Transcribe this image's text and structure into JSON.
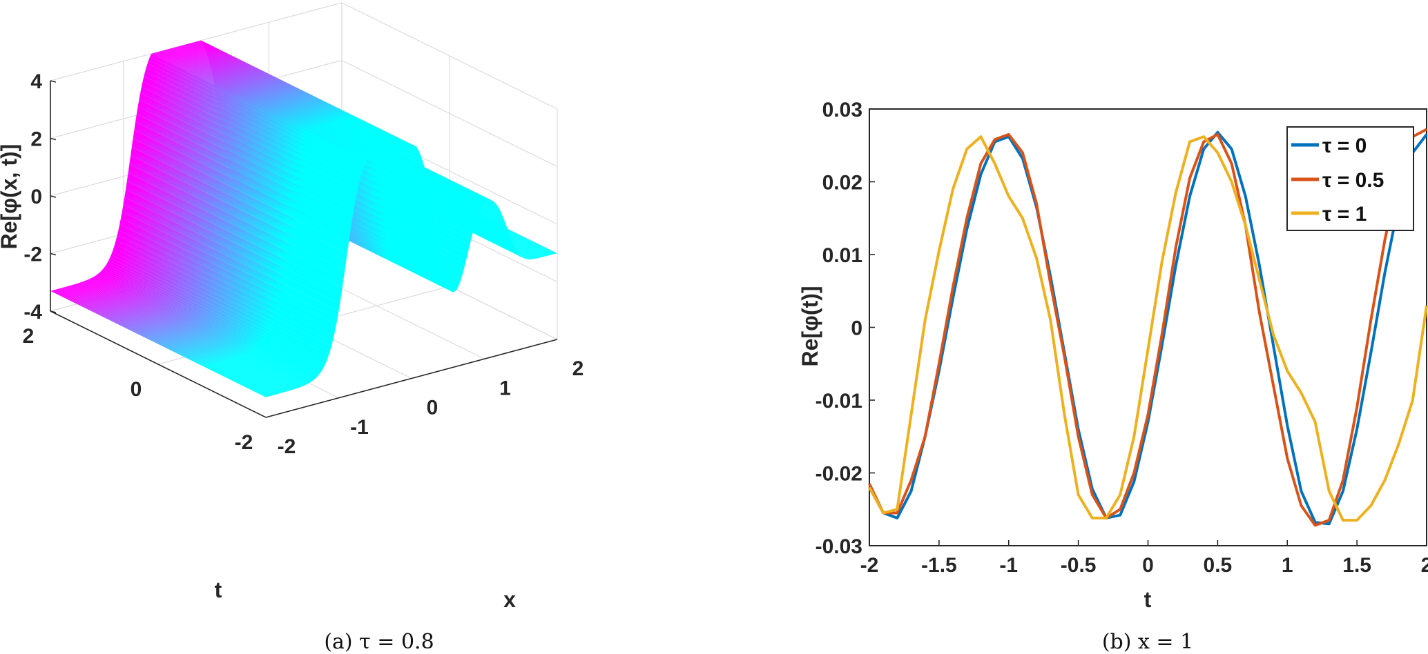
{
  "chart_data": [
    {
      "type": "surface",
      "caption": "(a) τ = 0.8",
      "zlabel": "Re[φ(x, t)]",
      "xlabel": "x",
      "ylabel": "t",
      "xlim": [
        -2,
        2
      ],
      "ylim": [
        -2,
        2
      ],
      "zlim": [
        -4,
        4
      ],
      "x_ticks": [
        "-2",
        "-1",
        "0",
        "1",
        "2"
      ],
      "y_ticks": [
        "-2",
        "0",
        "2"
      ],
      "z_ticks": [
        "-4",
        "-2",
        "0",
        "2",
        "4"
      ],
      "colormap": [
        "#00ffff",
        "#ff00ff"
      ],
      "grid": true
    },
    {
      "type": "line",
      "caption": "(b) x = 1",
      "xlabel": "t",
      "ylabel": "Re[φ(t)]",
      "xlim": [
        -2,
        2
      ],
      "ylim": [
        -0.03,
        0.03
      ],
      "x_ticks": [
        "-2",
        "-1.5",
        "-1",
        "-0.5",
        "0",
        "0.5",
        "1",
        "1.5",
        "2"
      ],
      "y_ticks": [
        "0.03",
        "0.02",
        "0.01",
        "0",
        "-0.01",
        "-0.02",
        "-0.03"
      ],
      "legend_position": "top-right",
      "series": [
        {
          "name": "τ = 0",
          "color": "#0072BD",
          "x": [
            -2.0,
            -1.9,
            -1.8,
            -1.7,
            -1.6,
            -1.5,
            -1.4,
            -1.3,
            -1.2,
            -1.1,
            -1.0,
            -0.9,
            -0.8,
            -0.7,
            -0.6,
            -0.5,
            -0.4,
            -0.3,
            -0.2,
            -0.1,
            0.0,
            0.1,
            0.2,
            0.3,
            0.4,
            0.5,
            0.6,
            0.7,
            0.8,
            0.9,
            1.0,
            1.1,
            1.2,
            1.3,
            1.4,
            1.5,
            1.6,
            1.7,
            1.8,
            1.9,
            2.0
          ],
          "y": [
            -0.022,
            -0.0255,
            -0.0262,
            -0.0225,
            -0.015,
            -0.006,
            0.004,
            0.0135,
            0.021,
            0.0255,
            0.0262,
            0.0232,
            0.0165,
            0.007,
            -0.0035,
            -0.014,
            -0.0222,
            -0.0262,
            -0.0258,
            -0.0212,
            -0.013,
            -0.0025,
            0.0085,
            0.018,
            0.0245,
            0.0268,
            0.0245,
            0.018,
            0.0085,
            -0.0025,
            -0.0135,
            -0.0225,
            -0.0268,
            -0.027,
            -0.0225,
            -0.014,
            -0.0035,
            0.0075,
            0.017,
            0.024,
            0.0265
          ]
        },
        {
          "name": "τ = 0.5",
          "color": "#D95319",
          "x": [
            -2.0,
            -1.9,
            -1.8,
            -1.7,
            -1.6,
            -1.5,
            -1.4,
            -1.3,
            -1.2,
            -1.1,
            -1.0,
            -0.9,
            -0.8,
            -0.7,
            -0.6,
            -0.5,
            -0.4,
            -0.3,
            -0.2,
            -0.1,
            0.0,
            0.1,
            0.2,
            0.3,
            0.4,
            0.5,
            0.6,
            0.7,
            0.8,
            0.9,
            1.0,
            1.1,
            1.2,
            1.3,
            1.4,
            1.5,
            1.6,
            1.7,
            1.8,
            1.9,
            2.0
          ],
          "y": [
            -0.0215,
            -0.0255,
            -0.0255,
            -0.021,
            -0.015,
            -0.005,
            0.0055,
            0.015,
            0.0225,
            0.0258,
            0.0265,
            0.024,
            0.017,
            0.006,
            -0.004,
            -0.015,
            -0.023,
            -0.0262,
            -0.025,
            -0.02,
            -0.012,
            -0.001,
            0.011,
            0.0205,
            0.0255,
            0.0265,
            0.0225,
            0.014,
            0.002,
            -0.008,
            -0.018,
            -0.0245,
            -0.0272,
            -0.0265,
            -0.021,
            -0.011,
            0.001,
            0.012,
            0.021,
            0.0262,
            0.0272
          ]
        },
        {
          "name": "τ = 1",
          "color": "#EDB120",
          "x": [
            -2.0,
            -1.9,
            -1.8,
            -1.7,
            -1.6,
            -1.5,
            -1.4,
            -1.3,
            -1.2,
            -1.1,
            -1.0,
            -0.9,
            -0.8,
            -0.7,
            -0.6,
            -0.5,
            -0.4,
            -0.3,
            -0.2,
            -0.1,
            0.0,
            0.1,
            0.2,
            0.3,
            0.4,
            0.5,
            0.6,
            0.7,
            0.8,
            0.9,
            1.0,
            1.1,
            1.2,
            1.3,
            1.4,
            1.5,
            1.6,
            1.7,
            1.8,
            1.9,
            2.0
          ],
          "y": [
            -0.022,
            -0.0255,
            -0.025,
            -0.012,
            0.001,
            0.0105,
            0.019,
            0.0245,
            0.0262,
            0.0225,
            0.018,
            0.015,
            0.0095,
            0.001,
            -0.012,
            -0.023,
            -0.0262,
            -0.0262,
            -0.023,
            -0.015,
            -0.003,
            0.009,
            0.0185,
            0.0255,
            0.0262,
            0.024,
            0.02,
            0.014,
            0.0065,
            -0.001,
            -0.006,
            -0.009,
            -0.013,
            -0.0225,
            -0.0265,
            -0.0265,
            -0.0245,
            -0.021,
            -0.016,
            -0.01,
            0.003
          ]
        }
      ]
    }
  ]
}
